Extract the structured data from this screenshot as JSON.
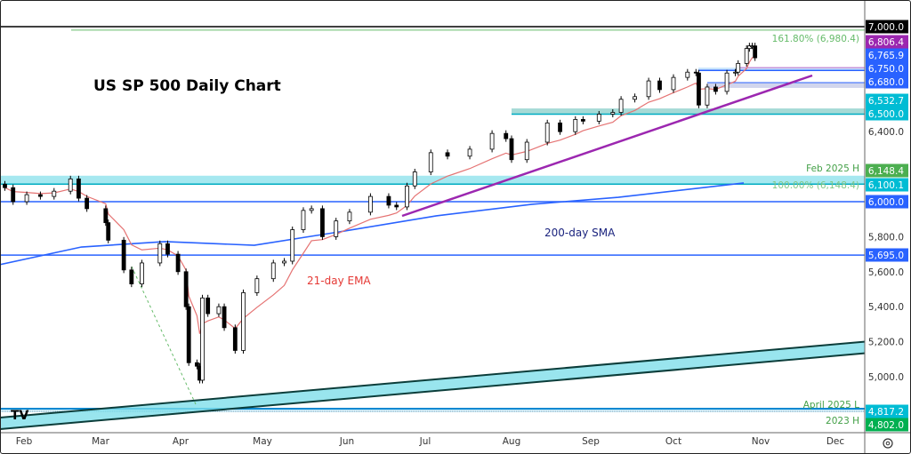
{
  "chart_data": {
    "type": "candlestick",
    "title": "US SP 500 Daily Chart",
    "ylim": [
      4700,
      7000
    ],
    "grid": false,
    "x_ticks": [
      {
        "label": "Feb",
        "date": "2025-02-01"
      },
      {
        "label": "Mar",
        "date": "2025-03-01"
      },
      {
        "label": "Apr",
        "date": "2025-04-01"
      },
      {
        "label": "May",
        "date": "2025-05-01"
      },
      {
        "label": "Jun",
        "date": "2025-06-01"
      },
      {
        "label": "Jul",
        "date": "2025-07-01"
      },
      {
        "label": "Aug",
        "date": "2025-08-01"
      },
      {
        "label": "Sep",
        "date": "2025-09-01"
      },
      {
        "label": "Oct",
        "date": "2025-10-01"
      },
      {
        "label": "Nov",
        "date": "2025-11-01"
      },
      {
        "label": "Dec",
        "date": "2025-12-01"
      }
    ],
    "y_ticks": [
      "6,400.0",
      "5,800.0",
      "5,600.0",
      "5,400.0",
      "5,200.0",
      "5,000.0"
    ],
    "y_tick_values": [
      6400,
      5800,
      5600,
      5400,
      5200,
      5000
    ],
    "closes": [
      [
        "2025-01-25",
        6080
      ],
      [
        "2025-01-28",
        6000
      ],
      [
        "2025-02-02",
        6040
      ],
      [
        "2025-02-07",
        6030
      ],
      [
        "2025-02-12",
        6060
      ],
      [
        "2025-02-18",
        6130
      ],
      [
        "2025-02-21",
        6020
      ],
      [
        "2025-02-24",
        5960
      ],
      [
        "2025-03-03",
        5880
      ],
      [
        "2025-03-04",
        5780
      ],
      [
        "2025-03-10",
        5610
      ],
      [
        "2025-03-13",
        5530
      ],
      [
        "2025-03-17",
        5650
      ],
      [
        "2025-03-24",
        5760
      ],
      [
        "2025-03-27",
        5700
      ],
      [
        "2025-03-31",
        5600
      ],
      [
        "2025-04-03",
        5400
      ],
      [
        "2025-04-04",
        5080
      ],
      [
        "2025-04-07",
        5060
      ],
      [
        "2025-04-08",
        4980
      ],
      [
        "2025-04-09",
        5450
      ],
      [
        "2025-04-11",
        5360
      ],
      [
        "2025-04-15",
        5400
      ],
      [
        "2025-04-17",
        5280
      ],
      [
        "2025-04-21",
        5150
      ],
      [
        "2025-04-24",
        5480
      ],
      [
        "2025-04-29",
        5560
      ],
      [
        "2025-05-05",
        5650
      ],
      [
        "2025-05-09",
        5660
      ],
      [
        "2025-05-12",
        5840
      ],
      [
        "2025-05-16",
        5950
      ],
      [
        "2025-05-19",
        5960
      ],
      [
        "2025-05-23",
        5800
      ],
      [
        "2025-05-28",
        5890
      ],
      [
        "2025-06-02",
        5940
      ],
      [
        "2025-06-10",
        6030
      ],
      [
        "2025-06-17",
        5980
      ],
      [
        "2025-06-20",
        5970
      ],
      [
        "2025-06-24",
        6090
      ],
      [
        "2025-06-27",
        6170
      ],
      [
        "2025-07-03",
        6280
      ],
      [
        "2025-07-09",
        6260
      ],
      [
        "2025-07-17",
        6300
      ],
      [
        "2025-07-25",
        6390
      ],
      [
        "2025-07-30",
        6360
      ],
      [
        "2025-08-01",
        6240
      ],
      [
        "2025-08-07",
        6340
      ],
      [
        "2025-08-15",
        6450
      ],
      [
        "2025-08-20",
        6400
      ],
      [
        "2025-08-26",
        6470
      ],
      [
        "2025-08-29",
        6460
      ],
      [
        "2025-09-04",
        6500
      ],
      [
        "2025-09-09",
        6510
      ],
      [
        "2025-09-12",
        6585
      ],
      [
        "2025-09-17",
        6600
      ],
      [
        "2025-09-22",
        6690
      ],
      [
        "2025-09-26",
        6640
      ],
      [
        "2025-10-01",
        6710
      ],
      [
        "2025-10-06",
        6740
      ],
      [
        "2025-10-09",
        6735
      ],
      [
        "2025-10-10",
        6552
      ],
      [
        "2025-10-13",
        6655
      ],
      [
        "2025-10-16",
        6630
      ],
      [
        "2025-10-20",
        6735
      ],
      [
        "2025-10-23",
        6740
      ],
      [
        "2025-10-24",
        6790
      ],
      [
        "2025-10-27",
        6875
      ],
      [
        "2025-10-28",
        6890
      ],
      [
        "2025-10-29",
        6890
      ],
      [
        "2025-10-30",
        6822
      ]
    ],
    "sma_200": [
      [
        "2025-01-20",
        5630
      ],
      [
        "2025-02-22",
        5741
      ],
      [
        "2025-03-26",
        5772
      ],
      [
        "2025-04-28",
        5751
      ],
      [
        "2025-05-31",
        5832
      ],
      [
        "2025-07-05",
        5919
      ],
      [
        "2025-08-09",
        5985
      ],
      [
        "2025-09-11",
        6025
      ],
      [
        "2025-10-26",
        6107
      ]
    ],
    "ema_period": 21,
    "annotations": {
      "ema_label": "21-day EMA",
      "sma_label": "200-day SMA",
      "feb_high_label": "Feb 2025 H",
      "fib_100_label": "100.00% (6,148.4)",
      "fib_161_label": "161.80% (6,980.4)",
      "april_low_label": "April 2025 L",
      "h2023_label": "2023 H"
    },
    "levels": [
      {
        "value": 7000,
        "label": "7,000.0",
        "color": "#000000"
      },
      {
        "value": 6806.4,
        "label": "6,806.4",
        "color": "#9c27b0"
      },
      {
        "value": 6765.9,
        "label": "6,765.9",
        "color": "#2962ff"
      },
      {
        "value": 6750,
        "label": "6,750.0",
        "color": "#2962ff"
      },
      {
        "value": 6680,
        "label": "6,680.0",
        "color": "#2962ff"
      },
      {
        "value": 6532.7,
        "label": "6,532.7",
        "color": "#00bcd4"
      },
      {
        "value": 6500,
        "label": "6,500.0",
        "color": "#00bcd4"
      },
      {
        "value": 6148.4,
        "label": "6,148.4",
        "color": "#4caf50"
      },
      {
        "value": 6100.1,
        "label": "6,100.1",
        "color": "#00bcd4"
      },
      {
        "value": 6000,
        "label": "6,000.0",
        "color": "#2962ff"
      },
      {
        "value": 5695,
        "label": "5,695.0",
        "color": "#2962ff"
      },
      {
        "value": 4817.2,
        "label": "4,817.2",
        "color": "#00bcd4"
      },
      {
        "value": 4802,
        "label": "4,802.0",
        "color": "#00b050"
      }
    ],
    "colors": {
      "ema": "#e57373",
      "sma": "#2962ff",
      "trendline": "#9c27b0",
      "channel": "#80deea",
      "zone": "#80cbc4",
      "fib": "#66bb6a",
      "label_green": "#43a047"
    }
  }
}
